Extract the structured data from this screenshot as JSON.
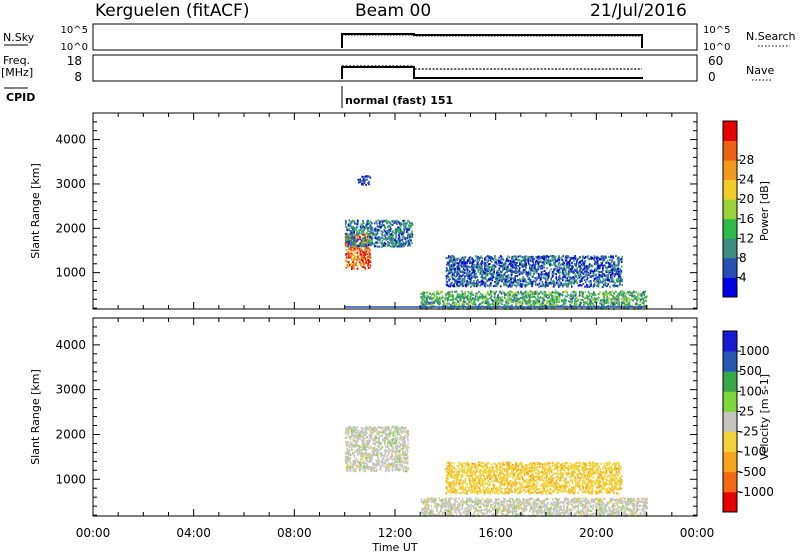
{
  "header": {
    "station": "Kerguelen (fitACF)",
    "beam": "Beam 00",
    "date": "21/Jul/2016"
  },
  "strip1": {
    "left_label": "N.Sky",
    "right_label": "N.Search",
    "left_ticks": [
      "10^5",
      "10^0"
    ],
    "right_ticks": [
      "10^5",
      "10^0"
    ]
  },
  "strip2": {
    "left_label_1": "Freq.",
    "left_label_2": "[MHz]",
    "right_label": "Nave",
    "left_ticks": [
      "18",
      "8"
    ],
    "right_ticks": [
      "60",
      "0"
    ]
  },
  "cpid": {
    "label": "CPID",
    "value": "normal (fast) 151"
  },
  "colors": {
    "power_scale": [
      "#0000e6",
      "#2850b4",
      "#3c8c82",
      "#2dba48",
      "#9ad23c",
      "#f0cd2a",
      "#f39a1e",
      "#ec6014",
      "#e60000"
    ],
    "velocity_scale": [
      "#e60000",
      "#f46814",
      "#f6a41e",
      "#f3d138",
      "#c6c4be",
      "#7ad838",
      "#35a848",
      "#2a56b4",
      "#1a1ad2"
    ]
  },
  "chart_data": [
    {
      "type": "heatmap",
      "parameter": "Power",
      "xlabel": "",
      "ylabel": "Slant Range [km]",
      "x_range_hours": [
        0,
        24
      ],
      "y_range_km": [
        180,
        4600
      ],
      "y_ticks": [
        1000,
        2000,
        3000,
        4000
      ],
      "colorbar": {
        "label": "Power [dB]",
        "range": [
          0,
          32
        ],
        "ticks": [
          "4",
          "8",
          "12",
          "16",
          "20",
          "24",
          "28"
        ]
      },
      "echo_regions": [
        {
          "start_ut": "10:00",
          "end_ut": "11:00",
          "range_km": [
            1100,
            1900
          ],
          "level": 26
        },
        {
          "start_ut": "10:00",
          "end_ut": "12:40",
          "range_km": [
            1600,
            2200
          ],
          "level": 8
        },
        {
          "start_ut": "10:30",
          "end_ut": "11:00",
          "range_km": [
            3000,
            3200
          ],
          "level": 4
        },
        {
          "start_ut": "14:00",
          "end_ut": "21:00",
          "range_km": [
            700,
            1400
          ],
          "level": 6
        },
        {
          "start_ut": "13:00",
          "end_ut": "22:00",
          "range_km": [
            200,
            600
          ],
          "level": 12
        }
      ]
    },
    {
      "type": "heatmap",
      "parameter": "Velocity",
      "xlabel": "Time UT",
      "ylabel": "Slant Range [km]",
      "x_range_hours": [
        0,
        24
      ],
      "x_ticks": [
        "00:00",
        "04:00",
        "08:00",
        "12:00",
        "16:00",
        "20:00",
        "00:00"
      ],
      "y_range_km": [
        180,
        4600
      ],
      "y_ticks": [
        1000,
        2000,
        3000,
        4000
      ],
      "colorbar": {
        "label": "Velocity [m s-1]",
        "ticks": [
          "1000",
          "500",
          "100",
          "25",
          "-25",
          "-100",
          "-500",
          "-1000"
        ]
      },
      "echo_regions": [
        {
          "start_ut": "10:00",
          "end_ut": "12:30",
          "range_km": [
            1200,
            2200
          ],
          "velocity": 0
        },
        {
          "start_ut": "14:00",
          "end_ut": "21:00",
          "range_km": [
            700,
            1400
          ],
          "velocity": -80
        },
        {
          "start_ut": "13:00",
          "end_ut": "22:00",
          "range_km": [
            200,
            600
          ],
          "velocity": 0
        }
      ]
    }
  ]
}
